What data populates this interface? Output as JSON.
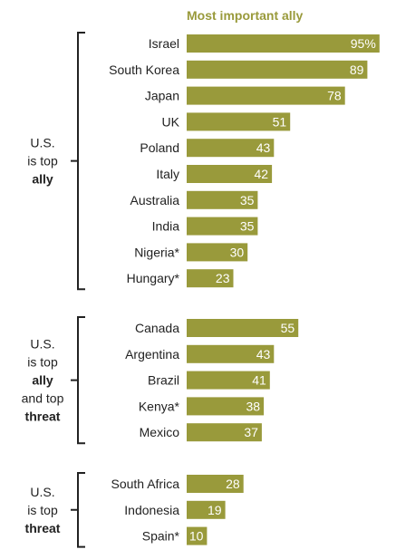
{
  "colors": {
    "bar": "#999a3b",
    "ally": "#999a3b",
    "threat": "#1f4e79",
    "text": "#222222"
  },
  "chart_data": {
    "type": "bar",
    "orientation": "horizontal",
    "header": "Most important ally",
    "value_suffix_first": "%",
    "xlim": [
      0,
      100
    ],
    "groups": [
      {
        "label_lines": [
          {
            "text": "U.S.",
            "style": "plain"
          },
          {
            "text": "is top",
            "style": "plain"
          },
          {
            "text": "ally",
            "style": "ally"
          }
        ],
        "categories": [
          "Israel",
          "South Korea",
          "Japan",
          "UK",
          "Poland",
          "Italy",
          "Australia",
          "India",
          "Nigeria*",
          "Hungary*"
        ],
        "values": [
          95,
          89,
          78,
          51,
          43,
          42,
          35,
          35,
          30,
          23
        ]
      },
      {
        "label_lines": [
          {
            "text": "U.S.",
            "style": "plain"
          },
          {
            "text": "is top",
            "style": "plain"
          },
          {
            "text": "ally",
            "style": "ally"
          },
          {
            "text": "and top",
            "style": "plain"
          },
          {
            "text": "threat",
            "style": "threat"
          }
        ],
        "categories": [
          "Canada",
          "Argentina",
          "Brazil",
          "Kenya*",
          "Mexico"
        ],
        "values": [
          55,
          43,
          41,
          38,
          37
        ]
      },
      {
        "label_lines": [
          {
            "text": "U.S.",
            "style": "plain"
          },
          {
            "text": "is top",
            "style": "plain"
          },
          {
            "text": "threat",
            "style": "threat"
          }
        ],
        "categories": [
          "South Africa",
          "Indonesia",
          "Spain*"
        ],
        "values": [
          28,
          19,
          10
        ]
      }
    ]
  }
}
